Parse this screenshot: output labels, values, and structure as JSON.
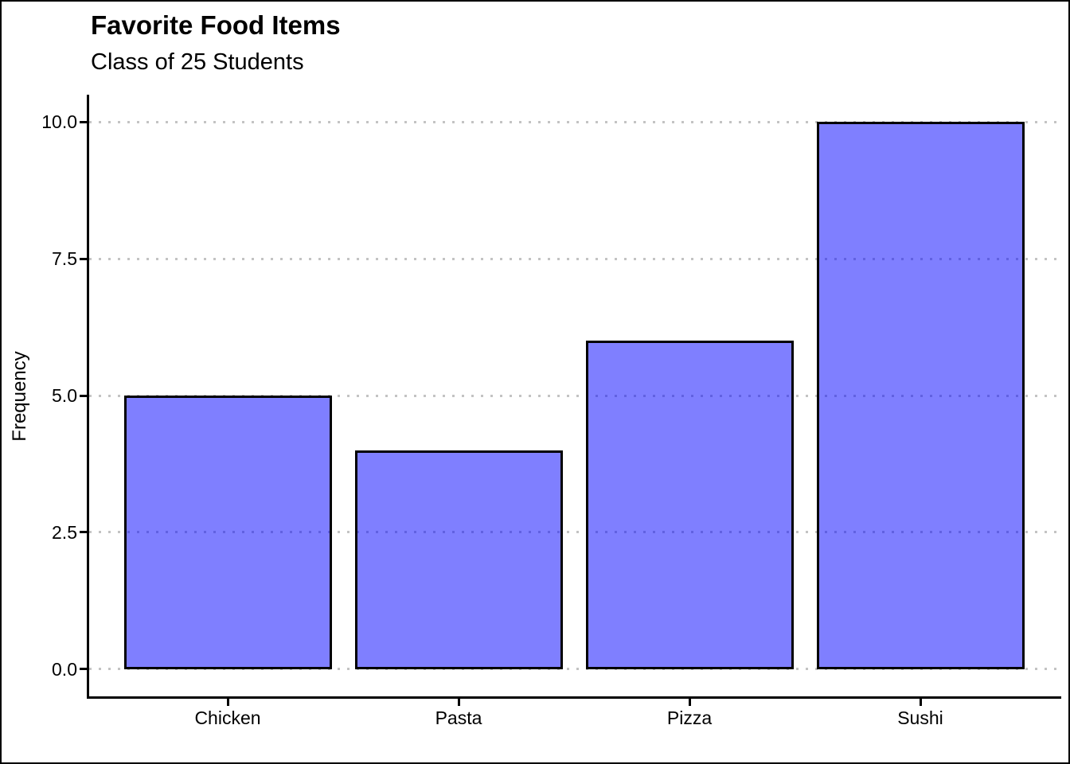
{
  "figure": {
    "kind": "static-plot-image"
  },
  "chart_data": {
    "type": "bar",
    "title": "Favorite Food Items",
    "subtitle": "Class of 25 Students",
    "xlabel": "",
    "ylabel": "Frequency",
    "categories": [
      "Chicken",
      "Pasta",
      "Pizza",
      "Sushi"
    ],
    "values": [
      5,
      4,
      6,
      10
    ],
    "ylim": [
      -0.5,
      10.5
    ],
    "yticks": [
      {
        "value": 0,
        "label": "0.0"
      },
      {
        "value": 2.5,
        "label": "2.5"
      },
      {
        "value": 5,
        "label": "5.0"
      },
      {
        "value": 7.5,
        "label": "7.5"
      },
      {
        "value": 10,
        "label": "10.0"
      }
    ],
    "grid": "horizontal-dotted",
    "legend": "none",
    "colors": {
      "bar_fill": "rgba(0,0,255,0.5)",
      "bar_fill_hex_on_white": "#7F7FFF",
      "bar_border": "#000000",
      "grid": "#C3C3C3",
      "axis": "#000000",
      "text": "#000000",
      "background": "#FFFFFF",
      "frame_border": "#000000"
    }
  }
}
